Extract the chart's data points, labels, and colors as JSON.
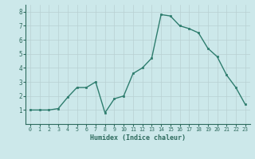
{
  "x": [
    0,
    1,
    2,
    3,
    4,
    5,
    6,
    7,
    8,
    9,
    10,
    11,
    12,
    13,
    14,
    15,
    16,
    17,
    18,
    19,
    20,
    21,
    22,
    23
  ],
  "y": [
    1.0,
    1.0,
    1.0,
    1.1,
    1.9,
    2.6,
    2.6,
    3.0,
    0.8,
    1.8,
    2.0,
    3.6,
    4.0,
    4.7,
    7.8,
    7.7,
    7.0,
    6.8,
    6.5,
    5.4,
    4.8,
    3.5,
    2.6,
    1.4
  ],
  "xlabel": "Humidex (Indice chaleur)",
  "xlim": [
    -0.5,
    23.5
  ],
  "ylim": [
    0.0,
    8.5
  ],
  "line_color": "#2e7d6e",
  "marker_color": "#2e7d6e",
  "bg_color": "#cce8ea",
  "grid_color": "#b8d0d2",
  "tick_label_color": "#2e6b5e",
  "xlabel_color": "#2e6b5e",
  "yticks": [
    1,
    2,
    3,
    4,
    5,
    6,
    7,
    8
  ],
  "xtick_labels": [
    "0",
    "1",
    "2",
    "3",
    "4",
    "5",
    "6",
    "7",
    "8",
    "9",
    "10",
    "11",
    "12",
    "13",
    "14",
    "15",
    "16",
    "17",
    "18",
    "19",
    "20",
    "21",
    "22",
    "23"
  ]
}
